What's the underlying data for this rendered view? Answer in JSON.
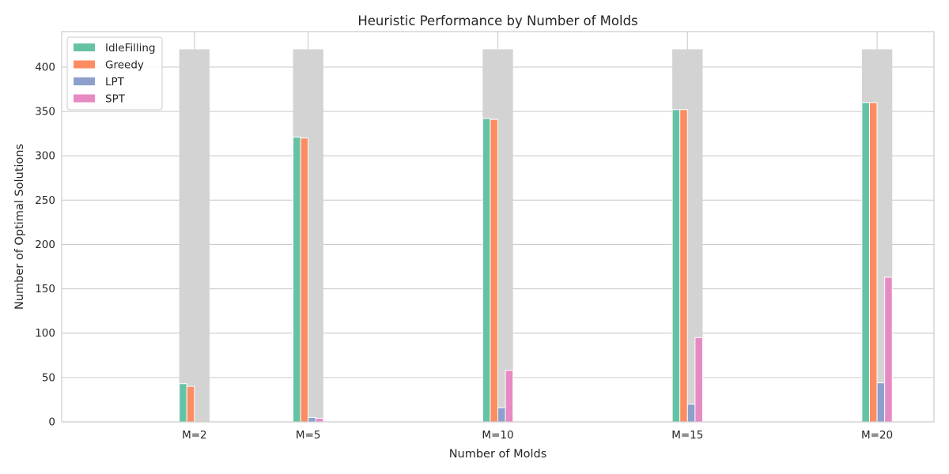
{
  "chart_data": {
    "type": "bar",
    "title": "Heuristic Performance by Number of Molds",
    "xlabel": "Number of Molds",
    "ylabel": "Number of Optimal Solutions",
    "x_numeric": [
      2,
      5,
      10,
      15,
      20
    ],
    "categories": [
      "M=2",
      "M=5",
      "M=10",
      "M=15",
      "M=20"
    ],
    "xlim": [
      -1.5,
      21.5
    ],
    "ylim": [
      0,
      440
    ],
    "yticks": [
      0,
      50,
      100,
      150,
      200,
      250,
      300,
      350,
      400
    ],
    "background_total": 420,
    "background_color": "#d3d3d3",
    "series": [
      {
        "name": "IdleFilling",
        "color": "#66c2a5",
        "values": [
          43,
          321,
          342,
          352,
          360
        ]
      },
      {
        "name": "Greedy",
        "color": "#fc8d62",
        "values": [
          40,
          320,
          341,
          352,
          360
        ]
      },
      {
        "name": "LPT",
        "color": "#8da0cb",
        "values": [
          0,
          5,
          16,
          20,
          44
        ]
      },
      {
        "name": "SPT",
        "color": "#e78ac3",
        "values": [
          0,
          4,
          58,
          95,
          163
        ]
      }
    ],
    "grid": true,
    "legend_position": "top-left"
  }
}
